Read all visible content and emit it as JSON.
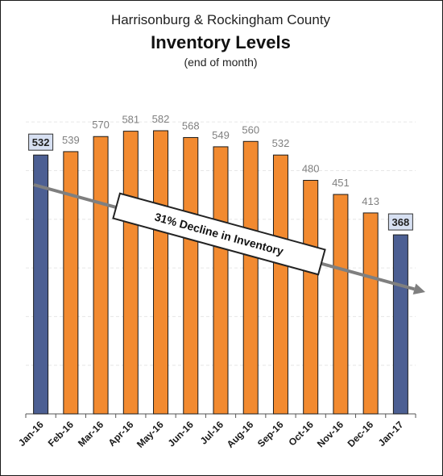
{
  "chart_data": {
    "type": "bar",
    "title": "Inventory Levels",
    "subtitle_top": "Harrisonburg & Rockingham County",
    "subtitle_bottom": "(end of month)",
    "categories": [
      "Jan-16",
      "Feb-16",
      "Mar-16",
      "Apr-16",
      "May-16",
      "Jun-16",
      "Jul-16",
      "Aug-16",
      "Sep-16",
      "Oct-16",
      "Nov-16",
      "Dec-16",
      "Jan-17"
    ],
    "values": [
      532,
      539,
      570,
      581,
      582,
      568,
      549,
      560,
      532,
      480,
      451,
      413,
      368
    ],
    "highlighted": [
      "Jan-16",
      "Jan-17"
    ],
    "ylim": [
      0,
      650
    ],
    "grid": true,
    "colors": {
      "bar": "#f28a30",
      "highlight": "#4c5f93",
      "label_box": "#d7e0f2"
    },
    "annotation": "31% Decline in Inventory"
  }
}
